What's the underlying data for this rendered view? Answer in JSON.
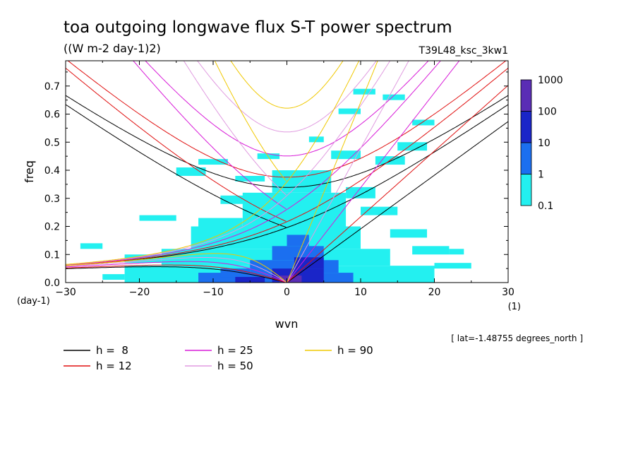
{
  "chart_data": {
    "type": "heatmap",
    "title": "toa outgoing longwave flux S-T power spectrum",
    "units": "((W m-2 day-1)2)",
    "run_label": "T39L48_ksc_3kw1",
    "xlabel": "wvn",
    "xunit": "(1)",
    "ylabel": "freq",
    "yunit": "(day-1)",
    "xlim": [
      -30,
      30
    ],
    "ylim": [
      0,
      0.79
    ],
    "xticks": [
      "-30",
      "-20",
      "-10",
      "0",
      "10",
      "20",
      "30"
    ],
    "yticks": [
      "0.0",
      "0.1",
      "0.2",
      "0.3",
      "0.4",
      "0.5",
      "0.6",
      "0.7"
    ],
    "colorbar": {
      "labels": [
        "1000",
        "100",
        "10",
        "1",
        "0.1"
      ],
      "colors": [
        "#5a2db5",
        "#1a25c8",
        "#1b6ff0",
        "#23f0f0"
      ]
    },
    "dispersion_curves": [
      {
        "label": "h =  8",
        "h": 8,
        "color": "#000000"
      },
      {
        "label": "h = 12",
        "h": 12,
        "color": "#e01010"
      },
      {
        "label": "h = 25",
        "h": 25,
        "color": "#d81bd8"
      },
      {
        "label": "h = 50",
        "h": 50,
        "color": "#e09be0"
      },
      {
        "label": "h = 90",
        "h": 90,
        "color": "#f0c800"
      }
    ],
    "footnote": "[ lat=-1.48755 degrees_north ]"
  }
}
